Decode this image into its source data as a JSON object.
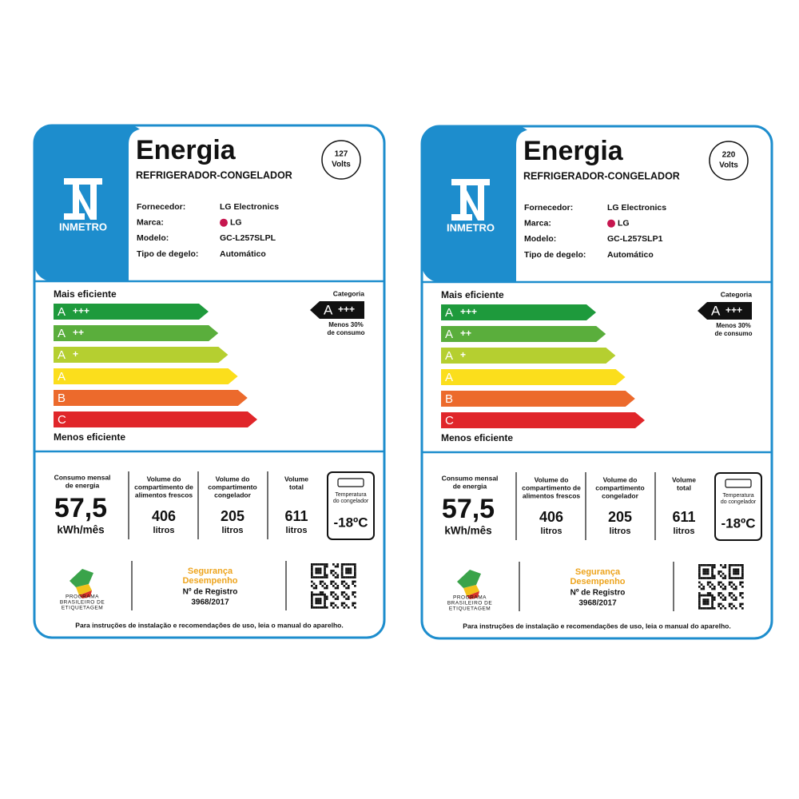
{
  "labels": [
    {
      "title": "Energia",
      "subtitle": "REFRIGERADOR-CONGELADOR",
      "voltage": "127",
      "voltage_unit": "Volts",
      "logo": "INMETRO",
      "fields": [
        {
          "label": "Fornecedor:",
          "value": "LG Electronics"
        },
        {
          "label": "Marca:",
          "value": "LG"
        },
        {
          "label": "Modelo:",
          "value": "GC-L257SLPL"
        },
        {
          "label": "Tipo de degelo:",
          "value": "Automático"
        }
      ],
      "scale_top": "Mais eficiente",
      "scale_bottom": "Menos eficiente",
      "classes": [
        {
          "letter": "A",
          "plus": "+++",
          "color": "#1e9a3c"
        },
        {
          "letter": "A",
          "plus": "++",
          "color": "#5aae3c"
        },
        {
          "letter": "A",
          "plus": "+",
          "color": "#b5cf30"
        },
        {
          "letter": "A",
          "color": "#fbde1c"
        },
        {
          "letter": "B",
          "color": "#ec6a2c"
        },
        {
          "letter": "C",
          "color": "#e0262a"
        }
      ],
      "category_label": "Categoria",
      "category": {
        "letter": "A",
        "plus": "+++"
      },
      "category_note": [
        "Menos 30%",
        "de consumo"
      ],
      "consumption": {
        "label": [
          "Consumo mensal",
          "de energia"
        ],
        "value": "57,5",
        "unit": "kWh/mês"
      },
      "volumes": [
        {
          "label": [
            "Volume do",
            "compartimento de",
            "alimentos frescos"
          ],
          "value": 406,
          "unit": "litros"
        },
        {
          "label": [
            "Volume do",
            "compartimento",
            "congelador"
          ],
          "value": 205,
          "unit": "litros"
        },
        {
          "label": [
            "Volume",
            "total"
          ],
          "value": 611,
          "unit": "litros"
        }
      ],
      "temperature": {
        "label": [
          "Temperatura",
          "do congelador"
        ],
        "value": "-18ºC"
      },
      "program": [
        "PROGRAMA",
        "BRASILEIRO DE",
        "ETIQUETAGEM"
      ],
      "seal": [
        "Segurança",
        "Desempenho"
      ],
      "registry_label": "Nº de Registro",
      "registry": "3968/2017",
      "footer": "Para instruções de instalação e recomendações de uso, leia o manual do aparelho."
    },
    {
      "title": "Energia",
      "subtitle": "REFRIGERADOR-CONGELADOR",
      "voltage": "220",
      "voltage_unit": "Volts",
      "logo": "INMETRO",
      "fields": [
        {
          "label": "Fornecedor:",
          "value": "LG Electronics"
        },
        {
          "label": "Marca:",
          "value": "LG"
        },
        {
          "label": "Modelo:",
          "value": "GC-L257SLP1"
        },
        {
          "label": "Tipo de degelo:",
          "value": "Automático"
        }
      ],
      "scale_top": "Mais eficiente",
      "scale_bottom": "Menos eficiente",
      "classes": [
        {
          "letter": "A",
          "plus": "+++",
          "color": "#1e9a3c"
        },
        {
          "letter": "A",
          "plus": "++",
          "color": "#5aae3c"
        },
        {
          "letter": "A",
          "plus": "+",
          "color": "#b5cf30"
        },
        {
          "letter": "A",
          "color": "#fbde1c"
        },
        {
          "letter": "B",
          "color": "#ec6a2c"
        },
        {
          "letter": "C",
          "color": "#e0262a"
        }
      ],
      "category_label": "Categoria",
      "category": {
        "letter": "A",
        "plus": "+++"
      },
      "category_note": [
        "Menos 30%",
        "de consumo"
      ],
      "consumption": {
        "label": [
          "Consumo mensal",
          "de energia"
        ],
        "value": "57,5",
        "unit": "kWh/mês"
      },
      "volumes": [
        {
          "label": [
            "Volume do",
            "compartimento de",
            "alimentos frescos"
          ],
          "value": 406,
          "unit": "litros"
        },
        {
          "label": [
            "Volume do",
            "compartimento",
            "congelador"
          ],
          "value": 205,
          "unit": "litros"
        },
        {
          "label": [
            "Volume",
            "total"
          ],
          "value": 611,
          "unit": "litros"
        }
      ],
      "temperature": {
        "label": [
          "Temperatura",
          "do congelador"
        ],
        "value": "-18ºC"
      },
      "program": [
        "PROGRAMA",
        "BRASILEIRO DE",
        "ETIQUETAGEM"
      ],
      "seal": [
        "Segurança",
        "Desempenho"
      ],
      "registry_label": "Nº de Registro",
      "registry": "3968/2017",
      "footer": "Para instruções de instalação e recomendações de uso, leia o manual do aparelho."
    }
  ]
}
